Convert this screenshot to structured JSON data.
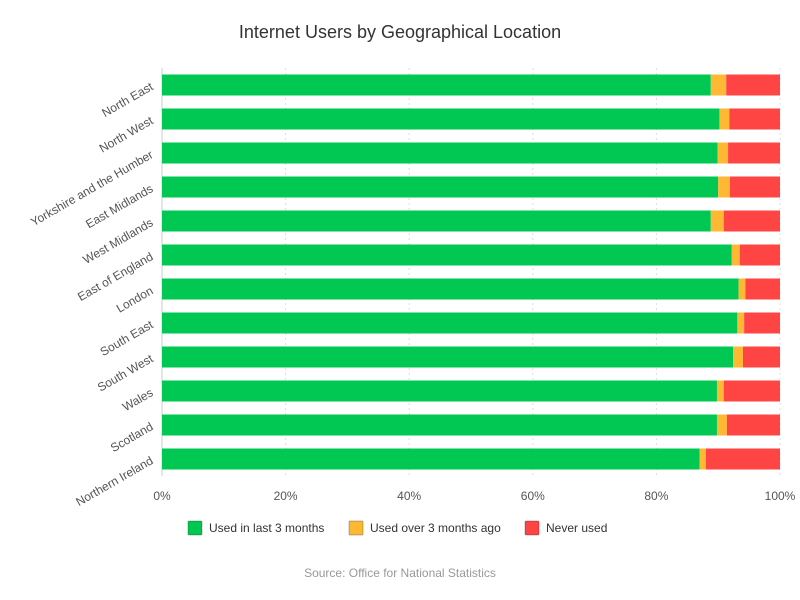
{
  "chart_data": {
    "type": "bar",
    "orientation": "horizontal",
    "stacked": true,
    "percent_stacked": true,
    "title": "Internet Users by Geographical Location",
    "source": "Source: Office for National Statistics",
    "categories": [
      "North East",
      "North West",
      "Yorkshire and the Humber",
      "East Midlands",
      "West Midlands",
      "East of England",
      "London",
      "South East",
      "South West",
      "Wales",
      "Scotland",
      "Northern Ireland"
    ],
    "series": [
      {
        "name": "Used in last 3 months",
        "color": "#00c853",
        "values": [
          88.8,
          90.2,
          89.9,
          90.0,
          88.8,
          92.2,
          93.3,
          93.1,
          92.4,
          89.8,
          89.8,
          87.0
        ]
      },
      {
        "name": "Used over 3 months ago",
        "color": "#ffb833",
        "values": [
          2.5,
          1.6,
          1.7,
          1.9,
          2.1,
          1.3,
          1.1,
          1.1,
          1.6,
          1.1,
          1.6,
          1.0
        ]
      },
      {
        "name": "Never used",
        "color": "#ff4444",
        "values": [
          8.7,
          8.2,
          8.4,
          8.1,
          9.1,
          6.5,
          5.6,
          5.8,
          6.0,
          9.1,
          8.6,
          12.0
        ]
      }
    ],
    "xlim": [
      0,
      100
    ],
    "x_ticks": [
      "0%",
      "20%",
      "40%",
      "60%",
      "80%",
      "100%"
    ],
    "x_tick_values": [
      0,
      20,
      40,
      60,
      80,
      100
    ],
    "grid": true,
    "legend_position": "bottom"
  }
}
